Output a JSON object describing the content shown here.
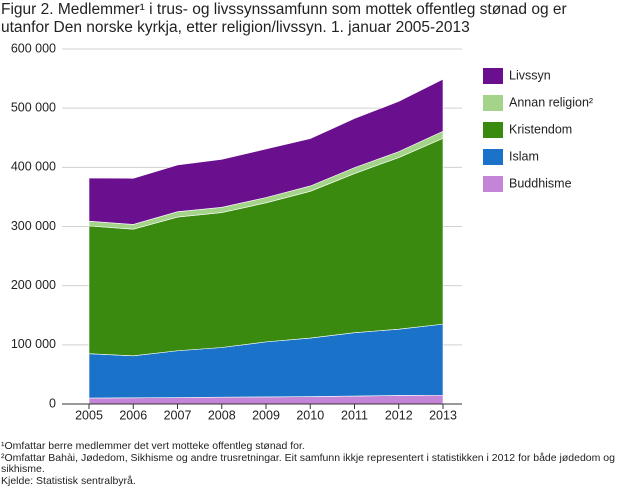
{
  "title": "Figur 2. Medlemmer¹ i trus- og livssynssamfunn som mottek offentleg stønad og er utanfor Den norske kyrkja, etter religion/livssyn. 1. januar 2005-2013",
  "notes": [
    "¹Omfattar berre medlemmer det vert motteke offentleg stønad for.",
    "²Omfattar Bahài, Jødedom, Sikhisme og andre trusretningar. Eit samfunn ikkje representert i statistikken i 2012 for både jødedom og sikhisme.",
    "Kjelde: Statistisk sentralbyrå."
  ],
  "chart_data": {
    "type": "stacked_area",
    "categories": [
      "2005",
      "2006",
      "2007",
      "2008",
      "2009",
      "2010",
      "2011",
      "2012",
      "2013"
    ],
    "series": [
      {
        "name": "Buddhisme",
        "color": "#c485d6",
        "values": [
          10000,
          10500,
          11000,
          11500,
          12000,
          12500,
          13500,
          14500,
          15000
        ]
      },
      {
        "name": "Islam",
        "color": "#1a73c9",
        "values": [
          75000,
          71000,
          79000,
          84000,
          93000,
          99000,
          107000,
          112000,
          120000
        ]
      },
      {
        "name": "Kristendom",
        "color": "#3b8a10",
        "values": [
          216000,
          214000,
          226000,
          228000,
          235000,
          248000,
          269000,
          290000,
          314000
        ]
      },
      {
        "name": "Annan religion²",
        "color": "#a3d48a",
        "values": [
          8000,
          8000,
          9000,
          9000,
          9000,
          9000,
          10000,
          10000,
          12000
        ]
      },
      {
        "name": "Livssyn",
        "color": "#6a0f8e",
        "values": [
          73000,
          78000,
          79000,
          81000,
          82000,
          80000,
          83000,
          85000,
          88000
        ]
      }
    ],
    "ylim": [
      0,
      600000
    ],
    "yticks": [
      0,
      {
        "value": 100000,
        "label": "100 000"
      },
      {
        "value": 200000,
        "label": "200 000"
      },
      {
        "value": 300000,
        "label": "300 000"
      },
      {
        "value": 400000,
        "label": "400 000"
      },
      {
        "value": 500000,
        "label": "500 000"
      },
      {
        "value": 600000,
        "label": "600 000"
      }
    ],
    "grid": true
  }
}
